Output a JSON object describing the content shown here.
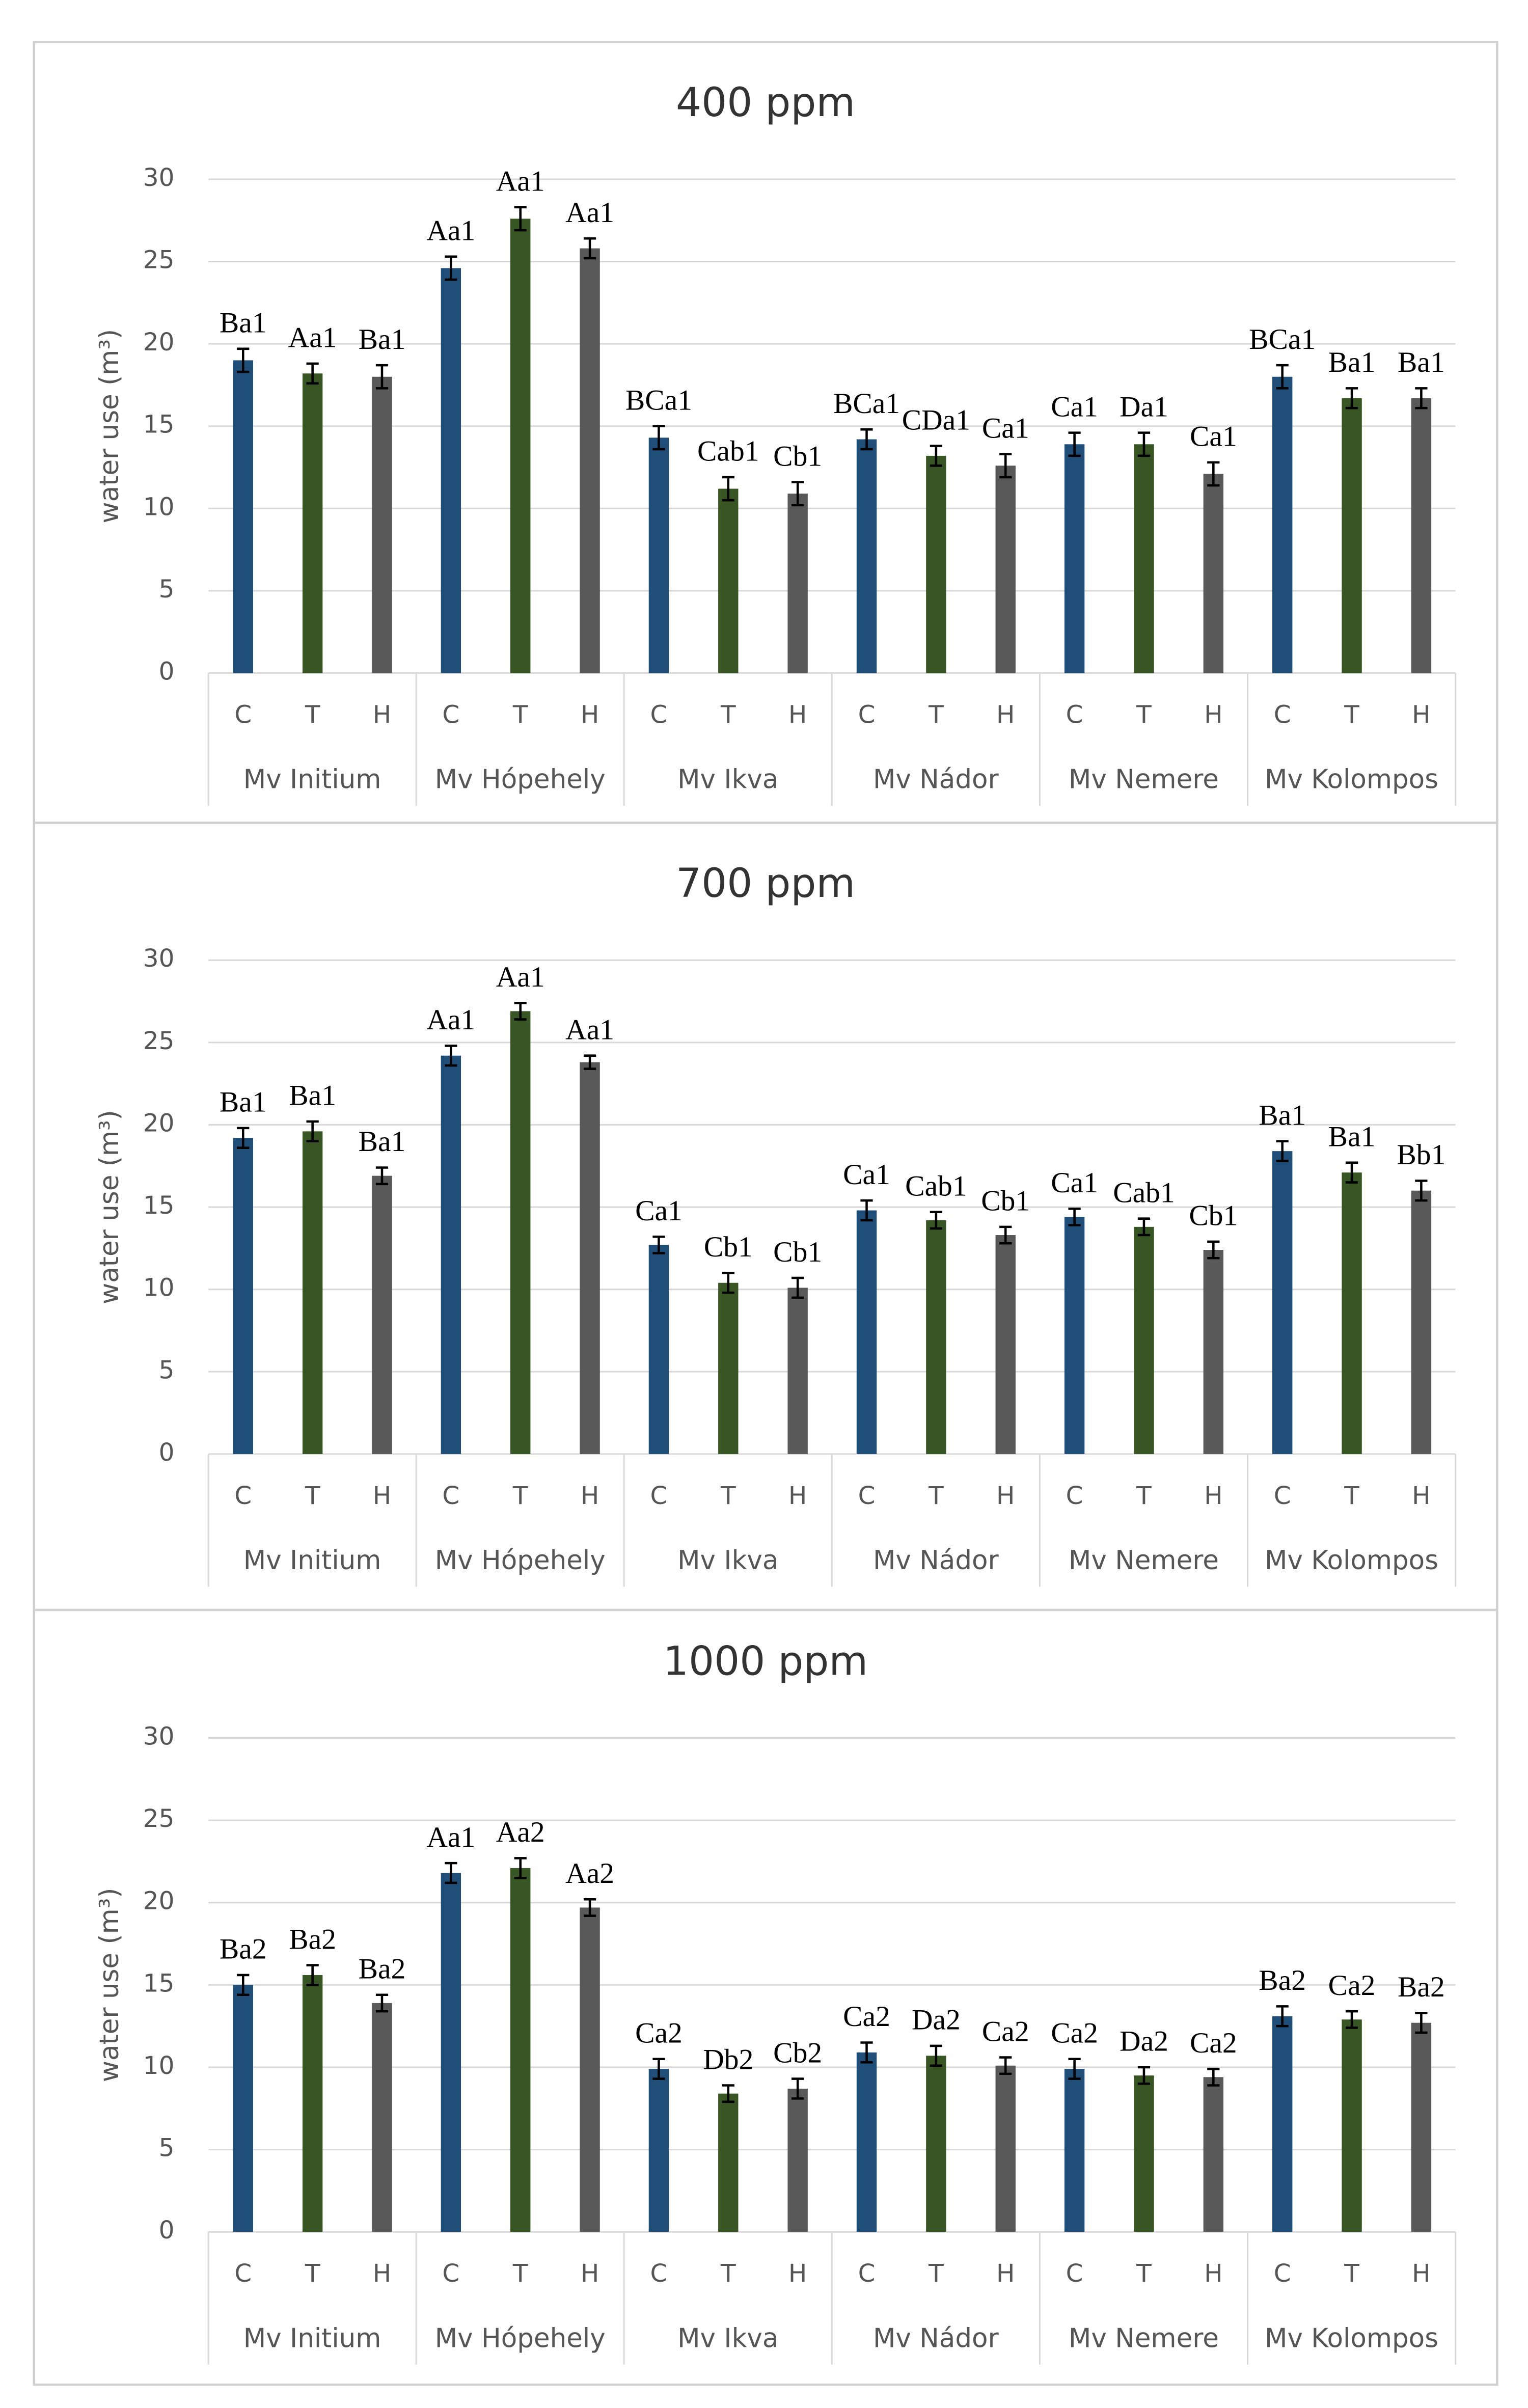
{
  "chart_data": [
    {
      "type": "bar",
      "title": "400 ppm",
      "y_label": "water use (m³)",
      "categories": [
        "Mv Initium",
        "Mv Hópehely",
        "Mv Ikva",
        "Mv Nádor",
        "Mv Nemere",
        "Mv Kolompos"
      ],
      "ylim": [
        0,
        30
      ],
      "yticks": [
        0,
        5,
        10,
        15,
        20,
        25,
        30
      ],
      "grid": true,
      "series": [
        {
          "name": "C",
          "color": "#1f4e79",
          "values": [
            19.0,
            24.6,
            14.3,
            14.2,
            13.9,
            18.0
          ],
          "errors": [
            0.7,
            0.7,
            0.7,
            0.6,
            0.7,
            0.7
          ],
          "letters": [
            "Ba1",
            "Aa1",
            "BCa1",
            "BCa1",
            "Ca1",
            "BCa1"
          ]
        },
        {
          "name": "T",
          "color": "#375623",
          "values": [
            18.2,
            27.6,
            11.2,
            13.2,
            13.9,
            16.7
          ],
          "errors": [
            0.6,
            0.7,
            0.7,
            0.6,
            0.7,
            0.6
          ],
          "letters": [
            "Aa1",
            "Aa1",
            "Cab1",
            "CDa1",
            "Da1",
            "Ba1"
          ]
        },
        {
          "name": "H",
          "color": "#595959",
          "values": [
            18.0,
            25.8,
            10.9,
            12.6,
            12.1,
            16.7
          ],
          "errors": [
            0.7,
            0.6,
            0.7,
            0.7,
            0.7,
            0.6
          ],
          "letters": [
            "Ba1",
            "Aa1",
            "Cb1",
            "Ca1",
            "Ca1",
            "Ba1"
          ]
        }
      ]
    },
    {
      "type": "bar",
      "title": "700 ppm",
      "y_label": "water use (m³)",
      "categories": [
        "Mv Initium",
        "Mv Hópehely",
        "Mv Ikva",
        "Mv Nádor",
        "Mv Nemere",
        "Mv Kolompos"
      ],
      "ylim": [
        0,
        30
      ],
      "yticks": [
        0,
        5,
        10,
        15,
        20,
        25,
        30
      ],
      "grid": true,
      "series": [
        {
          "name": "C",
          "color": "#1f4e79",
          "values": [
            19.2,
            24.2,
            12.7,
            14.8,
            14.4,
            18.4
          ],
          "errors": [
            0.6,
            0.6,
            0.5,
            0.6,
            0.5,
            0.6
          ],
          "letters": [
            "Ba1",
            "Aa1",
            "Ca1",
            "Ca1",
            "Ca1",
            "Ba1"
          ]
        },
        {
          "name": "T",
          "color": "#375623",
          "values": [
            19.6,
            26.9,
            10.4,
            14.2,
            13.8,
            17.1
          ],
          "errors": [
            0.6,
            0.5,
            0.6,
            0.5,
            0.5,
            0.6
          ],
          "letters": [
            "Ba1",
            "Aa1",
            "Cb1",
            "Cab1",
            "Cab1",
            "Ba1"
          ]
        },
        {
          "name": "H",
          "color": "#595959",
          "values": [
            16.9,
            23.8,
            10.1,
            13.3,
            12.4,
            16.0
          ],
          "errors": [
            0.5,
            0.4,
            0.6,
            0.5,
            0.5,
            0.6
          ],
          "letters": [
            "Ba1",
            "Aa1",
            "Cb1",
            "Cb1",
            "Cb1",
            "Bb1"
          ]
        }
      ]
    },
    {
      "type": "bar",
      "title": "1000 ppm",
      "y_label": "water use (m³)",
      "categories": [
        "Mv Initium",
        "Mv Hópehely",
        "Mv Ikva",
        "Mv Nádor",
        "Mv Nemere",
        "Mv Kolompos"
      ],
      "ylim": [
        0,
        30
      ],
      "yticks": [
        0,
        5,
        10,
        15,
        20,
        25,
        30
      ],
      "grid": true,
      "series": [
        {
          "name": "C",
          "color": "#1f4e79",
          "values": [
            15.0,
            21.8,
            9.9,
            10.9,
            9.9,
            13.1
          ],
          "errors": [
            0.6,
            0.6,
            0.6,
            0.6,
            0.6,
            0.6
          ],
          "letters": [
            "Ba2",
            "Aa1",
            "Ca2",
            "Ca2",
            "Ca2",
            "Ba2"
          ]
        },
        {
          "name": "T",
          "color": "#375623",
          "values": [
            15.6,
            22.1,
            8.4,
            10.7,
            9.5,
            12.9
          ],
          "errors": [
            0.6,
            0.6,
            0.5,
            0.6,
            0.5,
            0.5
          ],
          "letters": [
            "Ba2",
            "Aa2",
            "Db2",
            "Da2",
            "Da2",
            "Ca2"
          ]
        },
        {
          "name": "H",
          "color": "#595959",
          "values": [
            13.9,
            19.7,
            8.7,
            10.1,
            9.4,
            12.7
          ],
          "errors": [
            0.5,
            0.5,
            0.6,
            0.5,
            0.5,
            0.6
          ],
          "letters": [
            "Ba2",
            "Aa2",
            "Cb2",
            "Ca2",
            "Ca2",
            "Ba2"
          ]
        }
      ]
    }
  ]
}
